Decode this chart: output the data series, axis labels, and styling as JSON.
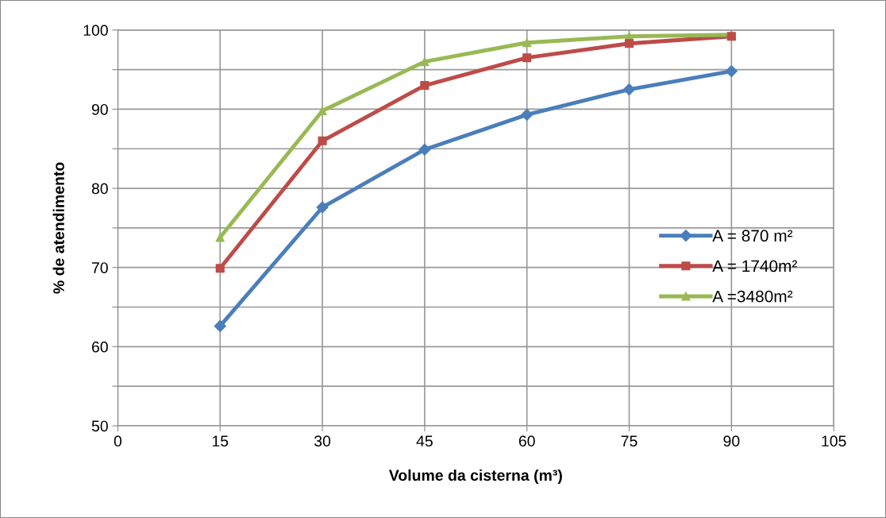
{
  "chart_data": {
    "type": "line",
    "xlabel": "Volume da cisterna (m³)",
    "ylabel": "% de atendimento",
    "x": [
      15,
      30,
      45,
      60,
      75,
      90
    ],
    "series": [
      {
        "name": "A = 870 m²",
        "color": "#4a7ebb",
        "marker": "diamond",
        "values": [
          62.6,
          77.6,
          84.9,
          89.3,
          92.5,
          94.8
        ]
      },
      {
        "name": "A = 1740m²",
        "color": "#be4b48",
        "marker": "square",
        "values": [
          69.9,
          86.0,
          93.0,
          96.5,
          98.3,
          99.2
        ]
      },
      {
        "name": "A =3480m²",
        "color": "#98b954",
        "marker": "triangle",
        "values": [
          73.8,
          89.8,
          96.0,
          98.4,
          99.2,
          99.4
        ]
      }
    ],
    "xlim": [
      0,
      105
    ],
    "xticks": [
      0,
      15,
      30,
      45,
      60,
      75,
      90,
      105
    ],
    "ylim": [
      50,
      100
    ],
    "yticks": [
      50,
      {
        "value": 55,
        "label": null
      },
      60,
      {
        "value": 65,
        "label": null
      },
      70,
      {
        "value": 75,
        "label": null
      },
      80,
      {
        "value": 85,
        "label": null
      },
      90,
      {
        "value": 95,
        "label": null
      },
      100
    ],
    "grid": true,
    "legend": "center right",
    "line_style": "solid"
  }
}
